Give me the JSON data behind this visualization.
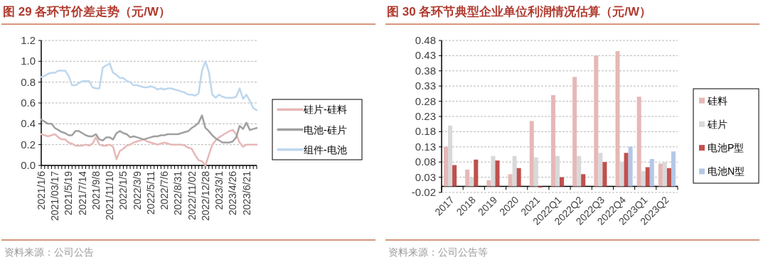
{
  "chart_data": [
    {
      "type": "line",
      "title": "图 29  各环节价差走势（元/W）",
      "annotations": [
        "资料来源：公司公告"
      ],
      "categories": [
        "2021/1/6",
        null,
        null,
        null,
        "2021/03/17",
        null,
        null,
        null,
        "2021/5/19",
        null,
        null,
        null,
        "2021/7/14",
        null,
        null,
        null,
        "2021/9/8",
        null,
        null,
        null,
        "2021/11/10",
        null,
        null,
        null,
        "2022/1/5",
        null,
        null,
        null,
        "2022/3/9",
        null,
        null,
        null,
        "2022/5/11",
        null,
        null,
        null,
        "2022/7/6",
        null,
        null,
        null,
        "2022/8/31",
        null,
        null,
        null,
        "2022/11/02",
        null,
        null,
        null,
        "2022/12/28",
        null,
        null,
        null,
        "2023/3/1",
        null,
        null,
        null,
        "2023/4/26",
        null,
        null,
        null,
        "2023/6/21",
        null,
        null,
        null
      ],
      "series": [
        {
          "name": "硅片-硅料",
          "color": "#e6b8b7",
          "values": [
            0.3,
            0.29,
            0.28,
            0.29,
            0.3,
            0.27,
            0.25,
            0.25,
            0.22,
            0.21,
            0.19,
            0.19,
            0.19,
            0.2,
            0.19,
            0.21,
            0.27,
            0.2,
            0.19,
            0.19,
            0.2,
            0.18,
            0.06,
            0.14,
            0.16,
            0.19,
            0.2,
            0.22,
            0.23,
            0.24,
            0.25,
            0.23,
            0.22,
            0.21,
            0.2,
            0.21,
            0.22,
            0.21,
            0.2,
            0.2,
            0.2,
            0.2,
            0.19,
            0.17,
            0.16,
            0.1,
            0.05,
            0.04,
            0.0,
            0.1,
            0.2,
            0.24,
            0.27,
            0.29,
            0.31,
            0.33,
            0.34,
            0.3,
            0.22,
            0.18,
            0.2,
            0.2,
            0.2,
            0.2
          ]
        },
        {
          "name": "电池-硅片",
          "color": "#a0a0a0",
          "values": [
            0.44,
            0.42,
            0.4,
            0.4,
            0.36,
            0.34,
            0.32,
            0.31,
            0.29,
            0.29,
            0.33,
            0.33,
            0.31,
            0.29,
            0.28,
            0.28,
            0.3,
            0.25,
            0.24,
            0.27,
            0.27,
            0.25,
            0.31,
            0.33,
            0.31,
            0.3,
            0.27,
            0.28,
            0.27,
            0.26,
            0.25,
            0.26,
            0.27,
            0.28,
            0.28,
            0.29,
            0.29,
            0.3,
            0.3,
            0.3,
            0.3,
            0.31,
            0.32,
            0.33,
            0.36,
            0.38,
            0.41,
            0.48,
            0.36,
            0.33,
            0.29,
            0.26,
            0.24,
            0.22,
            0.22,
            0.22,
            0.23,
            0.27,
            0.38,
            0.35,
            0.41,
            0.34,
            0.35,
            0.36
          ]
        },
        {
          "name": "组件-电池",
          "color": "#bdd7ee",
          "values": [
            0.85,
            0.86,
            0.88,
            0.89,
            0.89,
            0.91,
            0.91,
            0.91,
            0.86,
            0.77,
            0.77,
            0.79,
            0.81,
            0.81,
            0.81,
            0.75,
            0.74,
            0.74,
            0.94,
            0.96,
            0.98,
            0.89,
            0.87,
            0.84,
            0.84,
            0.81,
            0.8,
            0.77,
            0.77,
            0.76,
            0.75,
            0.75,
            0.76,
            0.75,
            0.73,
            0.74,
            0.73,
            0.74,
            0.74,
            0.73,
            0.72,
            0.71,
            0.7,
            0.68,
            0.68,
            0.67,
            0.69,
            0.91,
            1.0,
            0.9,
            0.68,
            0.65,
            0.68,
            0.66,
            0.65,
            0.65,
            0.65,
            0.66,
            0.74,
            0.64,
            0.68,
            0.62,
            0.55,
            0.53
          ]
        }
      ],
      "ylim": [
        0,
        1.2
      ],
      "yticks": [
        {
          "value": 0,
          "label": "0.0"
        },
        0.2,
        0.4,
        0.6,
        0.8,
        {
          "value": 1,
          "label": "1.0"
        },
        1.2
      ],
      "grid": "y",
      "legend": "right"
    },
    {
      "type": "bar",
      "title": "图 30 各环节典型企业单位利润情况估算（元/W）",
      "annotations": [
        "资料来源：公司公告等"
      ],
      "categories": [
        "2017",
        "2018",
        "2019",
        "2020",
        "2021",
        "2022Q1",
        "2022Q2",
        "2022Q3",
        "2022Q4",
        "2023Q1",
        "2023Q2"
      ],
      "series": [
        {
          "name": "硅料",
          "color": "#e6b8b7",
          "values": [
            0.13,
            0.055,
            0.02,
            0.04,
            0.215,
            0.3,
            0.36,
            0.43,
            0.445,
            0.295,
            0.075
          ]
        },
        {
          "name": "硅片",
          "color": "#d9d9d9",
          "values": [
            0.2,
            0.03,
            0.1,
            0.1,
            0.095,
            0.1,
            0.1,
            0.11,
            0.08,
            0.05,
            0.08
          ]
        },
        {
          "name": "电池P型",
          "color": "#c0504d",
          "values": [
            0.07,
            0.088,
            0.085,
            0.06,
            -0.004,
            0.03,
            0.04,
            0.08,
            0.11,
            0.063,
            0.06
          ]
        },
        {
          "name": "电池N型",
          "color": "#b4c7e7",
          "values": [
            null,
            null,
            null,
            null,
            null,
            null,
            null,
            null,
            0.13,
            0.09,
            0.115
          ]
        }
      ],
      "ylim": [
        -0.02,
        0.48
      ],
      "yticks": [
        -0.02,
        0.03,
        0.08,
        0.13,
        0.18,
        0.23,
        0.28,
        0.33,
        0.38,
        0.43,
        0.48
      ],
      "grid": "y",
      "legend": "right"
    }
  ]
}
